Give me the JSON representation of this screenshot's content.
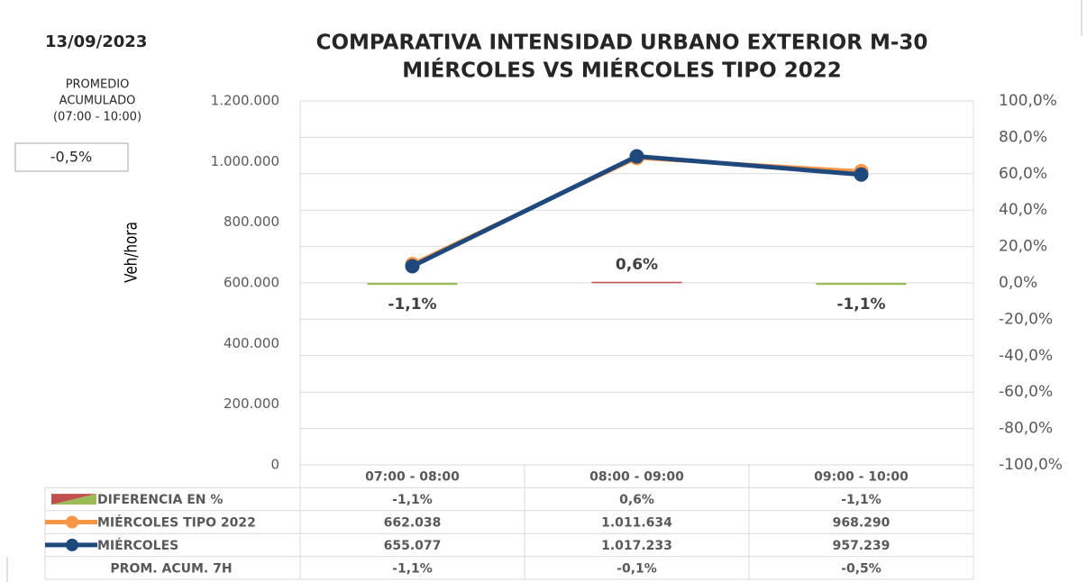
{
  "date": "13/09/2023",
  "summary": {
    "label_lines": [
      "PROMEDIO",
      "ACUMULADO",
      "(07:00 - 10:00)"
    ],
    "value": "-0,5%"
  },
  "chart_data": {
    "type": "line",
    "title_lines": [
      "COMPARATIVA INTENSIDAD URBANO EXTERIOR M-30",
      "MIÉRCOLES VS MIÉRCOLES TIPO 2022"
    ],
    "y_label": "Veh/hora",
    "categories": [
      "07:00 - 08:00",
      "08:00 - 09:00",
      "09:00 - 10:00"
    ],
    "series": [
      {
        "name": "DIFERENCIA EN %",
        "type": "bar",
        "axis": "y2",
        "colors": [
          "#9bbb59",
          "#c0504d",
          "#9bbb59"
        ],
        "values": [
          -1.1,
          0.6,
          -1.1
        ],
        "value_labels": [
          "-1,1%",
          "0,6%",
          "-1,1%"
        ]
      },
      {
        "name": "MIÉRCOLES TIPO 2022",
        "type": "line",
        "color": "#f79646",
        "values": [
          662038,
          1011634,
          968290
        ],
        "value_labels": [
          "662.038",
          "1.011.634",
          "968.290"
        ]
      },
      {
        "name": "MIÉRCOLES",
        "type": "line",
        "color": "#1f497d",
        "values": [
          655077,
          1017233,
          957239
        ],
        "value_labels": [
          "655.077",
          "1.017.233",
          "957.239"
        ]
      }
    ],
    "ylim": [
      0,
      1200000
    ],
    "yticks": [
      0,
      {
        "value": 200000,
        "label": "200.000"
      },
      {
        "value": 400000,
        "label": "400.000"
      },
      {
        "value": 600000,
        "label": "600.000"
      },
      {
        "value": 800000,
        "label": "800.000"
      },
      {
        "value": 1000000,
        "label": "1.000.000"
      },
      {
        "value": 1200000,
        "label": "1.200.000"
      }
    ],
    "y2lim": [
      -100,
      100
    ],
    "y2ticks": [
      {
        "value": -100,
        "label": "-100,0%"
      },
      {
        "value": -80,
        "label": "-80,0%"
      },
      {
        "value": -60,
        "label": "-60,0%"
      },
      {
        "value": -40,
        "label": "-40,0%"
      },
      {
        "value": -20,
        "label": "-20,0%"
      },
      {
        "value": 0,
        "label": "0,0%"
      },
      {
        "value": 20,
        "label": "20,0%"
      },
      {
        "value": 40,
        "label": "40,0%"
      },
      {
        "value": 60,
        "label": "60,0%"
      },
      {
        "value": 80,
        "label": "80,0%"
      },
      {
        "value": 100,
        "label": "100,0%"
      }
    ],
    "grid": "y2",
    "extra_rows": [
      {
        "name": "PROM. ACUM. 7H",
        "labels": [
          "-1,1%",
          "-0,1%",
          "-0,5%"
        ]
      }
    ]
  }
}
